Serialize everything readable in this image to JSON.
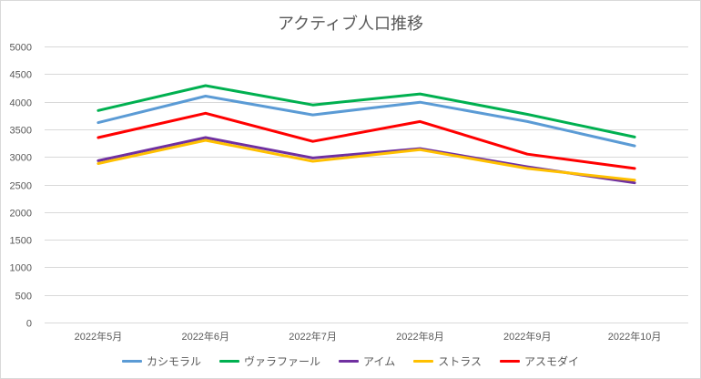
{
  "chart_data": {
    "type": "line",
    "title": "アクティブ人口推移",
    "xlabel": "",
    "ylabel": "",
    "categories": [
      "2022年5月",
      "2022年6月",
      "2022年7月",
      "2022年8月",
      "2022年9月",
      "2022年10月"
    ],
    "ylim": [
      0,
      5000
    ],
    "yticks": [
      0,
      500,
      1000,
      1500,
      2000,
      2500,
      3000,
      3500,
      4000,
      4500,
      5000
    ],
    "grid": true,
    "legend": "bottom",
    "series": [
      {
        "name": "カシモラル",
        "color": "#5b9bd5",
        "values": [
          3620,
          4100,
          3760,
          3990,
          3640,
          3200
        ]
      },
      {
        "name": "ヴァラファール",
        "color": "#00b050",
        "values": [
          3840,
          4290,
          3940,
          4140,
          3770,
          3360
        ]
      },
      {
        "name": "アイム",
        "color": "#7030a0",
        "values": [
          2930,
          3350,
          2980,
          3150,
          2820,
          2530
        ]
      },
      {
        "name": "ストラス",
        "color": "#ffc000",
        "values": [
          2880,
          3300,
          2920,
          3130,
          2790,
          2580
        ]
      },
      {
        "name": "アスモダイ",
        "color": "#ff0000",
        "values": [
          3350,
          3790,
          3280,
          3640,
          3050,
          2790
        ]
      }
    ]
  }
}
